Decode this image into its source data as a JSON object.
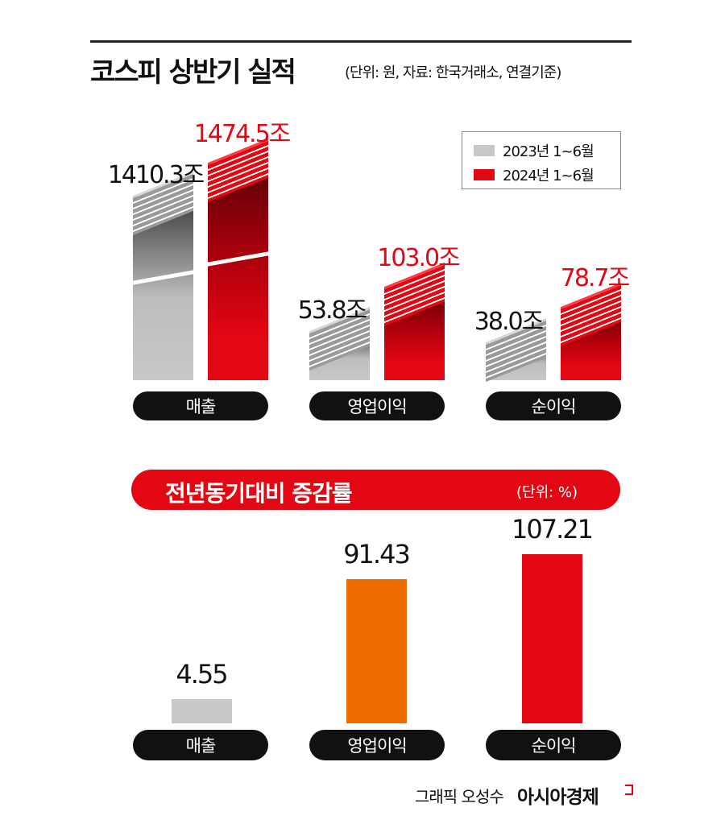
{
  "header": {
    "title": "코스피 상반기 실적",
    "subtitle": "(단위: 원, 자료: 한국거래소, 연결기준)"
  },
  "footer": {
    "credit": "그래픽 오성수",
    "logo": "아시아경제"
  },
  "colors": {
    "y2023": "#c8c8c8",
    "y2024": "#e30613",
    "operating_change": "#ec6c00",
    "banner": "#e30613"
  },
  "chart_data": [
    {
      "type": "bar",
      "title": "코스피 상반기 실적",
      "subtitle": "(단위: 원, 자료: 한국거래소, 연결기준)",
      "categories": [
        "매출",
        "영업이익",
        "순이익"
      ],
      "legend": "top-right",
      "series": [
        {
          "name": "2023년 1~6월",
          "values": [
            1410.3,
            53.8,
            38.0
          ],
          "labels": [
            "1410.3조",
            "53.8조",
            "38.0조"
          ],
          "color": "#c8c8c8"
        },
        {
          "name": "2024년 1~6월",
          "values": [
            1474.5,
            103.0,
            78.7
          ],
          "labels": [
            "1474.5조",
            "103.0조",
            "78.7조"
          ],
          "color": "#e30613"
        }
      ]
    },
    {
      "type": "bar",
      "title": "전년동기대비 증감률",
      "unit": "(단위: %)",
      "categories": [
        "매출",
        "영업이익",
        "순이익"
      ],
      "values": [
        4.55,
        91.43,
        107.21
      ],
      "labels": [
        "4.55",
        "91.43",
        "107.21"
      ],
      "colors": [
        "#c8c8c8",
        "#ec6c00",
        "#e30613"
      ]
    }
  ]
}
